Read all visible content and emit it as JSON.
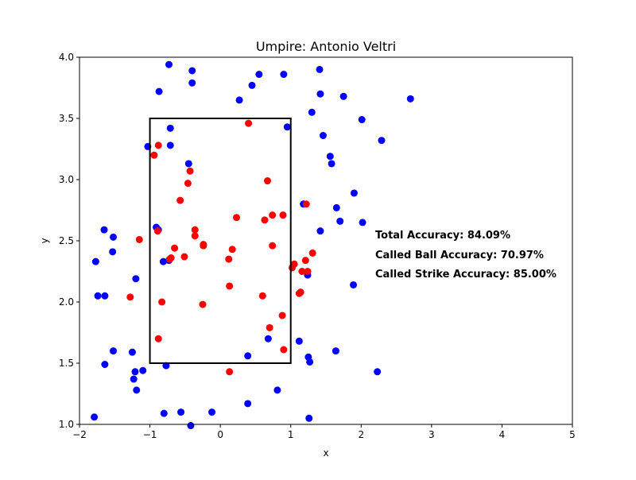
{
  "chart_data": {
    "type": "scatter",
    "title": "Umpire: Antonio Veltri",
    "xlabel": "x",
    "ylabel": "y",
    "xlim": [
      -2,
      5
    ],
    "ylim": [
      1.0,
      4.0
    ],
    "xticks": [
      "−2",
      "−1",
      "0",
      "1",
      "2",
      "3",
      "4",
      "5"
    ],
    "xtick_values": [
      -2,
      -1,
      0,
      1,
      2,
      3,
      4,
      5
    ],
    "yticks": [
      "1.0",
      "1.5",
      "2.0",
      "2.5",
      "3.0",
      "3.5",
      "4.0"
    ],
    "ytick_values": [
      1.0,
      1.5,
      2.0,
      2.5,
      3.0,
      3.5,
      4.0
    ],
    "grid": false,
    "strike_zone": {
      "x0": -1,
      "x1": 1,
      "y0": 1.5,
      "y1": 3.5,
      "color": "#000000"
    },
    "annotations": [
      "Total Accuracy: 84.09%",
      "Called Ball Accuracy: 70.97%",
      "Called Strike Accuracy: 85.00%"
    ],
    "series": [
      {
        "color": "#0000ff",
        "points": [
          [
            -0.73,
            3.94
          ],
          [
            -0.4,
            3.89
          ],
          [
            -0.4,
            3.79
          ],
          [
            -0.87,
            3.72
          ],
          [
            0.55,
            3.86
          ],
          [
            0.9,
            3.86
          ],
          [
            1.41,
            3.9
          ],
          [
            0.45,
            3.77
          ],
          [
            1.42,
            3.7
          ],
          [
            1.75,
            3.68
          ],
          [
            2.7,
            3.66
          ],
          [
            0.27,
            3.65
          ],
          [
            1.3,
            3.55
          ],
          [
            2.01,
            3.49
          ],
          [
            0.95,
            3.43
          ],
          [
            -0.71,
            3.42
          ],
          [
            1.46,
            3.36
          ],
          [
            2.29,
            3.32
          ],
          [
            -1.03,
            3.27
          ],
          [
            -0.71,
            3.28
          ],
          [
            1.56,
            3.19
          ],
          [
            -0.45,
            3.13
          ],
          [
            1.58,
            3.13
          ],
          [
            1.9,
            2.89
          ],
          [
            1.18,
            2.8
          ],
          [
            1.65,
            2.77
          ],
          [
            1.7,
            2.66
          ],
          [
            2.02,
            2.65
          ],
          [
            -0.91,
            2.61
          ],
          [
            -0.88,
            2.59
          ],
          [
            -1.65,
            2.59
          ],
          [
            1.42,
            2.58
          ],
          [
            -1.52,
            2.53
          ],
          [
            -1.53,
            2.41
          ],
          [
            -0.81,
            2.33
          ],
          [
            -0.73,
            2.34
          ],
          [
            -1.77,
            2.33
          ],
          [
            1.24,
            2.22
          ],
          [
            -1.2,
            2.19
          ],
          [
            1.89,
            2.14
          ],
          [
            -1.74,
            2.05
          ],
          [
            -1.64,
            2.05
          ],
          [
            1.12,
            1.68
          ],
          [
            0.68,
            1.7
          ],
          [
            -1.52,
            1.6
          ],
          [
            -1.25,
            1.59
          ],
          [
            1.64,
            1.6
          ],
          [
            0.39,
            1.56
          ],
          [
            1.25,
            1.55
          ],
          [
            1.27,
            1.51
          ],
          [
            -1.64,
            1.49
          ],
          [
            -0.77,
            1.48
          ],
          [
            -1.21,
            1.43
          ],
          [
            -1.1,
            1.44
          ],
          [
            2.23,
            1.43
          ],
          [
            -1.23,
            1.37
          ],
          [
            -1.19,
            1.28
          ],
          [
            0.81,
            1.28
          ],
          [
            0.39,
            1.17
          ],
          [
            -0.8,
            1.09
          ],
          [
            -0.56,
            1.1
          ],
          [
            -0.12,
            1.1
          ],
          [
            -1.79,
            1.06
          ],
          [
            1.26,
            1.05
          ],
          [
            -0.42,
            0.99
          ]
        ]
      },
      {
        "color": "#ff0000",
        "points": [
          [
            0.4,
            3.46
          ],
          [
            -0.88,
            3.28
          ],
          [
            -0.94,
            3.2
          ],
          [
            -0.43,
            3.07
          ],
          [
            -0.46,
            2.97
          ],
          [
            0.67,
            2.99
          ],
          [
            -0.57,
            2.83
          ],
          [
            0.23,
            2.69
          ],
          [
            0.63,
            2.67
          ],
          [
            0.74,
            2.71
          ],
          [
            0.89,
            2.71
          ],
          [
            1.22,
            2.8
          ],
          [
            -0.36,
            2.59
          ],
          [
            -0.89,
            2.58
          ],
          [
            -0.36,
            2.54
          ],
          [
            -1.15,
            2.51
          ],
          [
            -0.24,
            2.47
          ],
          [
            -0.24,
            2.46
          ],
          [
            0.74,
            2.46
          ],
          [
            -0.65,
            2.44
          ],
          [
            0.17,
            2.43
          ],
          [
            1.31,
            2.4
          ],
          [
            -0.51,
            2.37
          ],
          [
            -0.7,
            2.36
          ],
          [
            -0.72,
            2.35
          ],
          [
            0.12,
            2.35
          ],
          [
            1.21,
            2.34
          ],
          [
            1.05,
            2.31
          ],
          [
            1.02,
            2.28
          ],
          [
            1.16,
            2.25
          ],
          [
            1.24,
            2.25
          ],
          [
            0.13,
            2.13
          ],
          [
            1.14,
            2.08
          ],
          [
            1.12,
            2.07
          ],
          [
            -1.28,
            2.04
          ],
          [
            0.6,
            2.05
          ],
          [
            -0.83,
            2.0
          ],
          [
            -0.25,
            1.98
          ],
          [
            0.88,
            1.89
          ],
          [
            0.7,
            1.79
          ],
          [
            -0.88,
            1.7
          ],
          [
            0.9,
            1.61
          ],
          [
            0.13,
            1.43
          ]
        ]
      }
    ]
  }
}
